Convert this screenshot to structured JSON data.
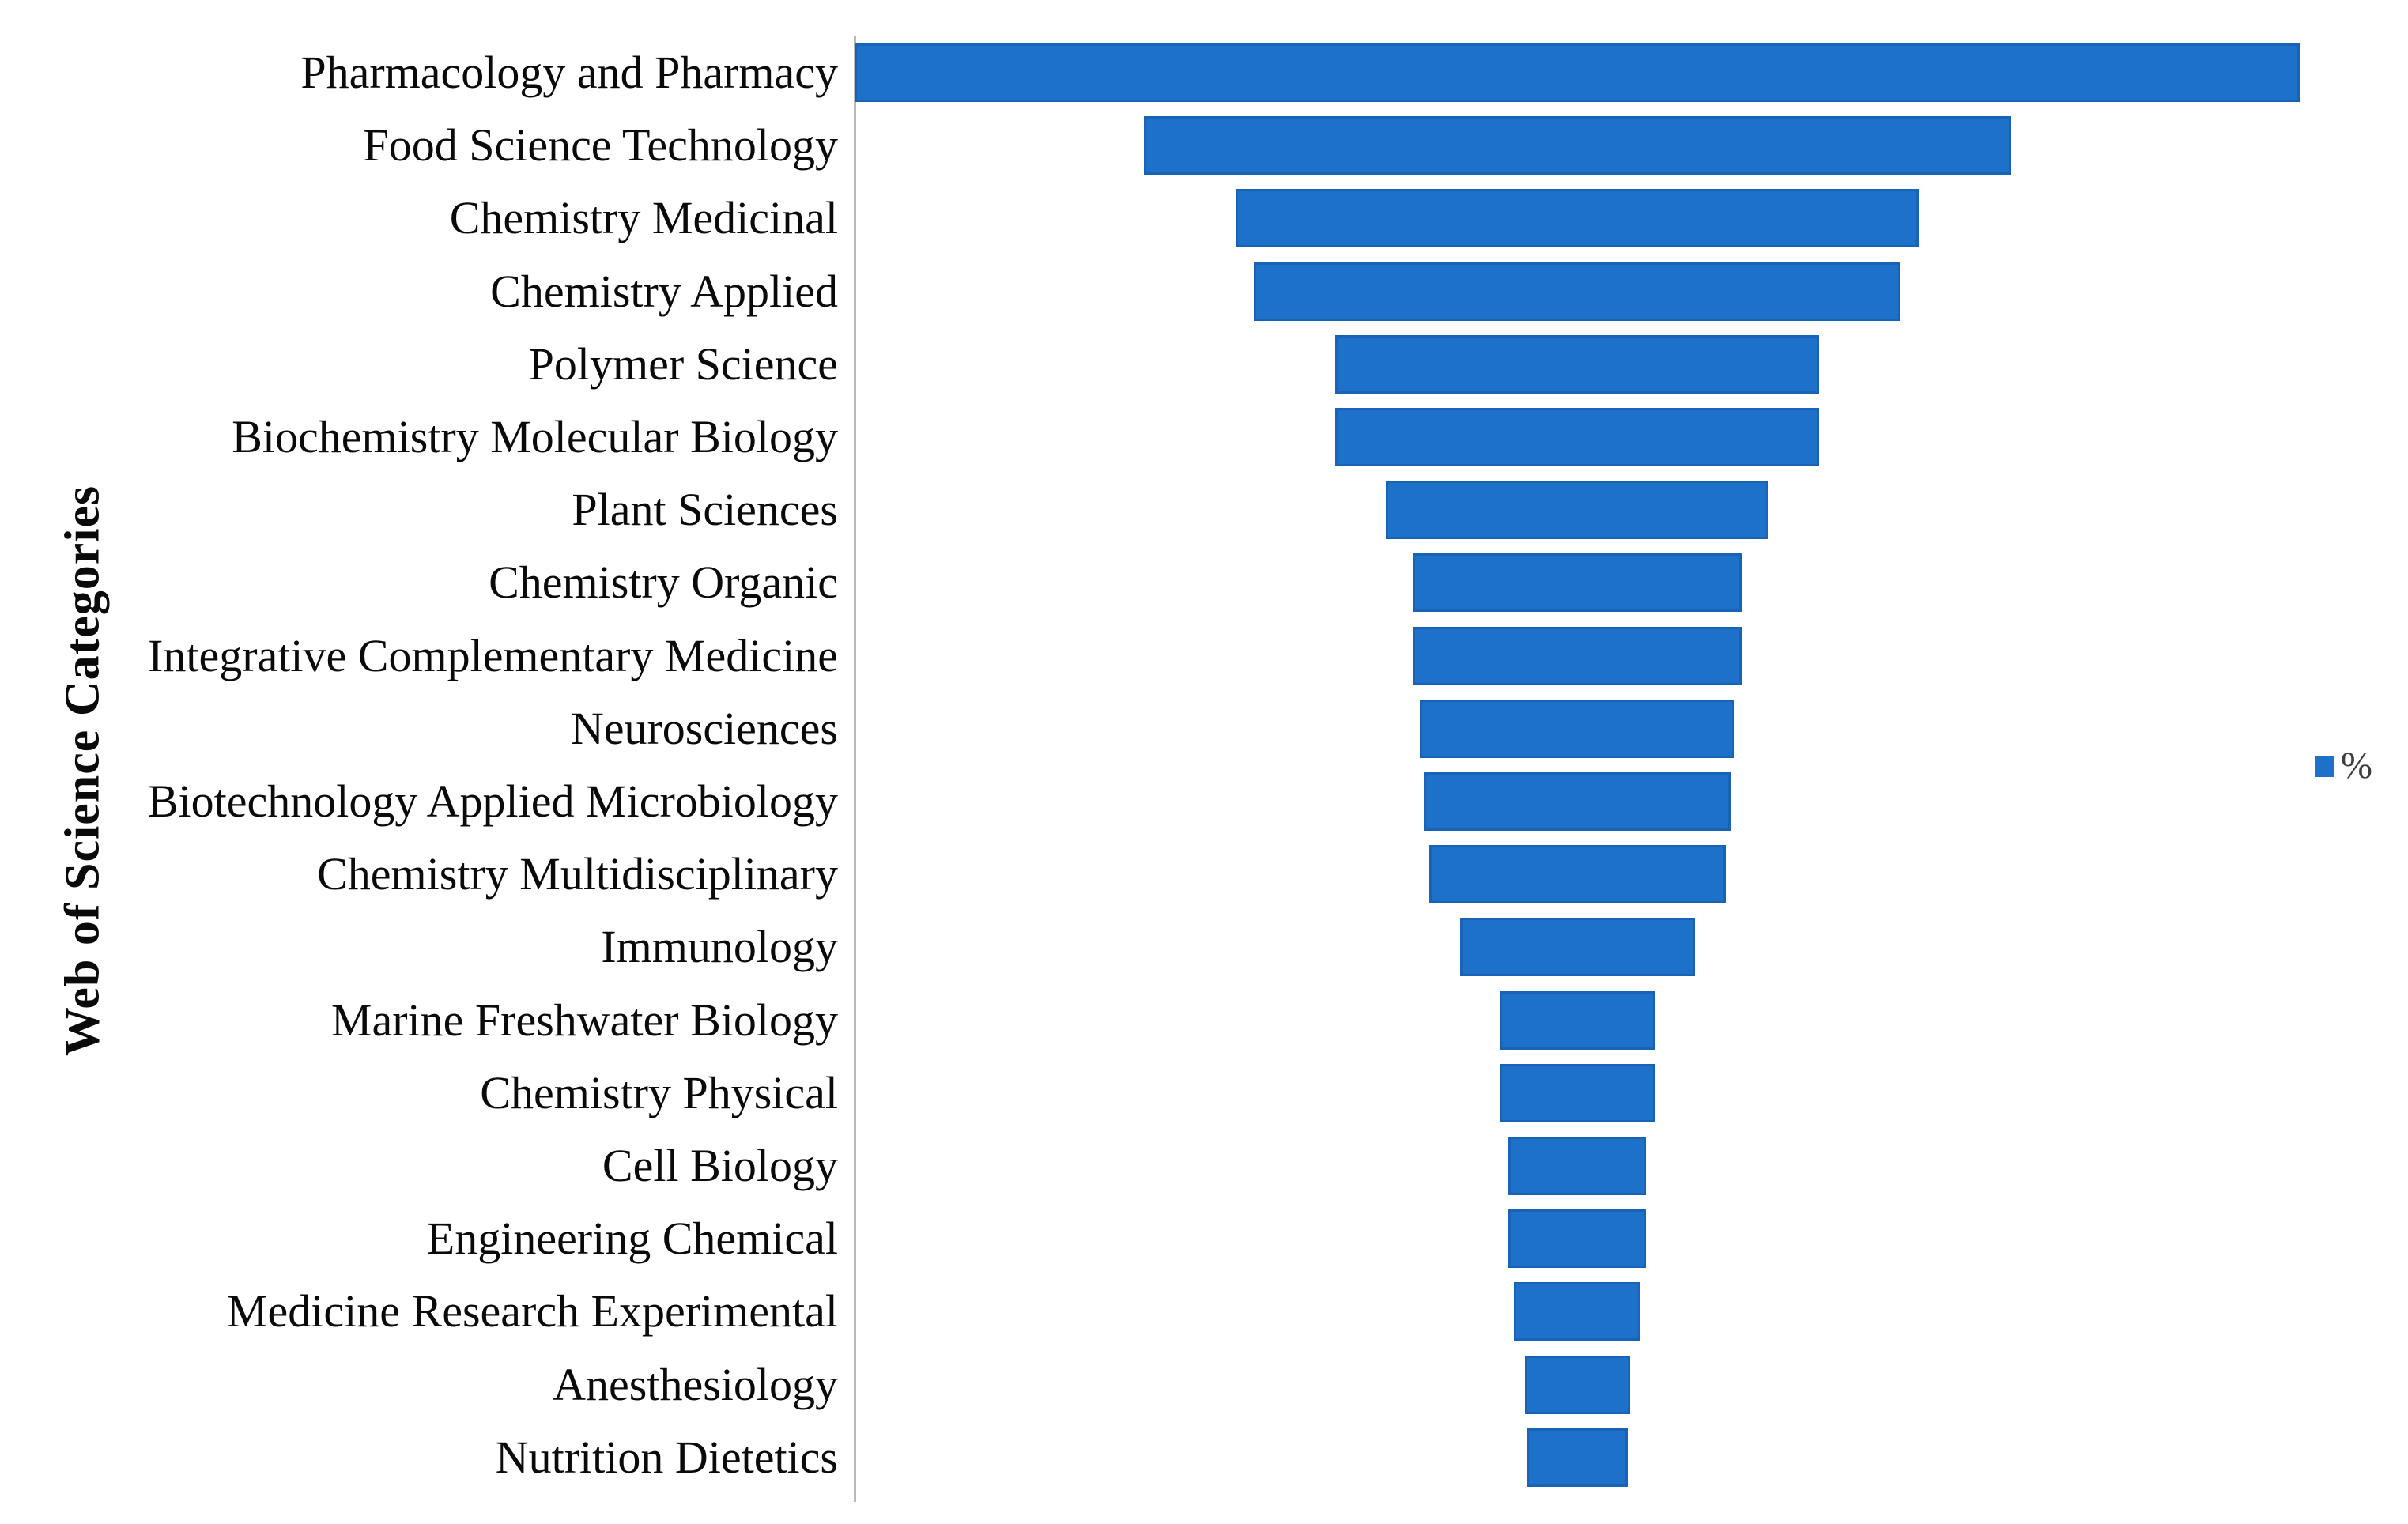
{
  "chart_data": {
    "type": "bar",
    "variant": "horizontal-centered-funnel",
    "title": "",
    "xlabel": "",
    "ylabel": "Web of Science Categories",
    "unit": "%",
    "grid": false,
    "values_estimated_from_bar_widths": true,
    "legend": {
      "label": "%",
      "position": "right-middle",
      "swatch_color": "#1e71c8"
    },
    "categories": [
      "Pharmacology and Pharmacy",
      "Food Science Technology",
      "Chemistry Medicinal",
      "Chemistry Applied",
      "Polymer Science",
      "Biochemistry Molecular Biology",
      "Plant Sciences",
      "Chemistry Organic",
      "Integrative Complementary Medicine",
      "Neurosciences",
      "Biotechnology Applied Microbiology",
      "Chemistry Multidisciplinary",
      "Immunology",
      "Marine Freshwater Biology",
      "Chemistry Physical",
      "Cell Biology",
      "Engineering Chemical",
      "Medicine Research Experimental",
      "Anesthesiology",
      "Nutrition Dietetics"
    ],
    "series": [
      {
        "name": "%",
        "color": "#1e71c8",
        "values": [
          40.0,
          24.0,
          18.9,
          17.9,
          13.4,
          13.4,
          10.6,
          9.1,
          9.1,
          8.7,
          8.5,
          8.2,
          6.5,
          4.3,
          4.3,
          3.8,
          3.8,
          3.5,
          2.9,
          2.8
        ]
      }
    ]
  },
  "colors": {
    "bar": "#1e71c8",
    "bar_edge": "#1552a0",
    "axis_line": "#b9b9b9",
    "label_text": "#0a0a0a",
    "legend_text": "#3f3f3f",
    "background": "#ffffff"
  }
}
